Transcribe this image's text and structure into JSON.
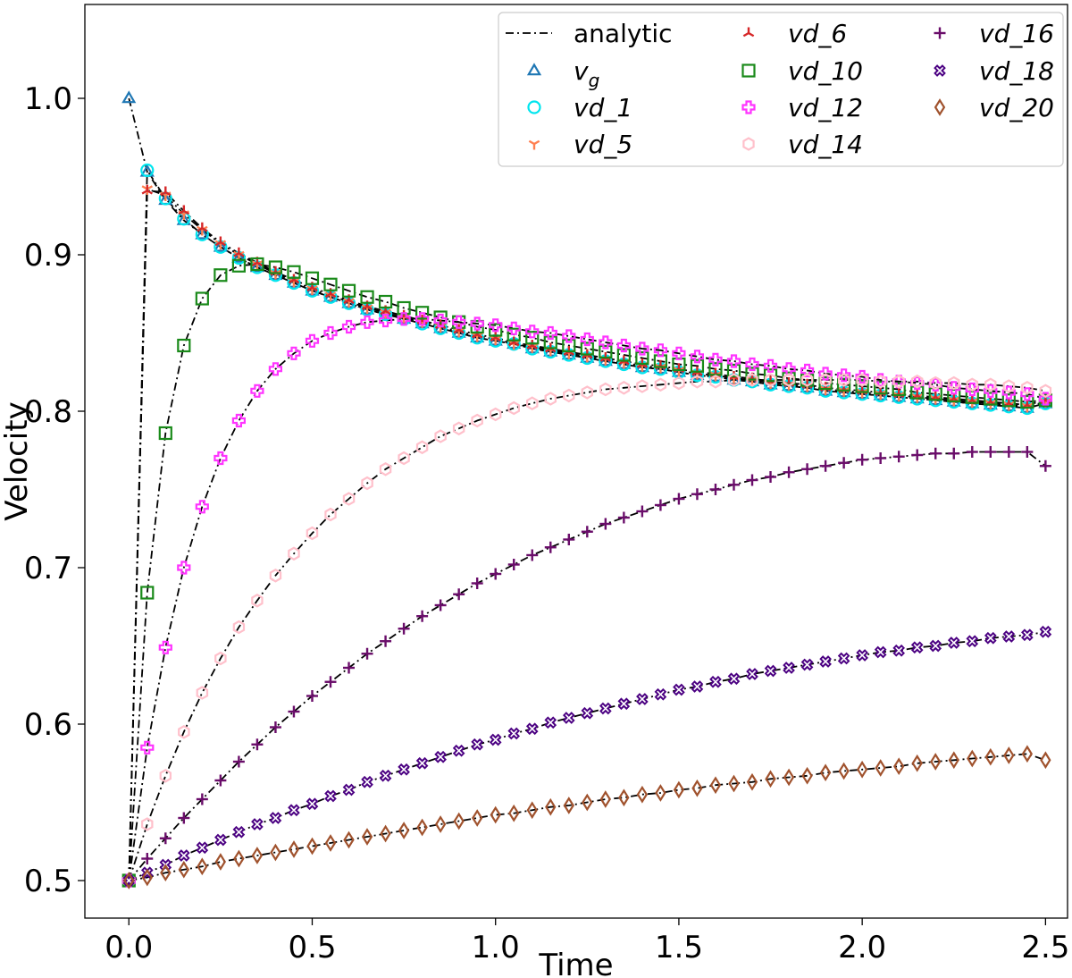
{
  "chart_data": {
    "type": "line",
    "title": "",
    "xlabel": "Time",
    "ylabel": "Velocity",
    "xlim": [
      -0.12,
      2.56
    ],
    "ylim": [
      0.476,
      1.06
    ],
    "xticks": [
      0.0,
      0.5,
      1.0,
      1.5,
      2.0,
      2.5
    ],
    "xtick_labels": [
      "0.0",
      "0.5",
      "1.0",
      "1.5",
      "2.0",
      "2.5"
    ],
    "yticks": [
      0.5,
      0.6,
      0.7,
      0.8,
      0.9,
      1.0
    ],
    "ytick_labels": [
      "0.5",
      "0.6",
      "0.7",
      "0.8",
      "0.9",
      "1.0"
    ],
    "grid": false,
    "legend_position": "top-right",
    "legend_columns": 3,
    "time_step": 0.05,
    "t_end": 2.5,
    "legend": [
      {
        "key": "analytic",
        "label": "analytic",
        "sub": "",
        "italic": false
      },
      {
        "key": "vg",
        "label": "v",
        "sub": "g",
        "italic": true
      },
      {
        "key": "vd_1",
        "label": "vd_1",
        "sub": "",
        "italic": true
      },
      {
        "key": "vd_5",
        "label": "vd_5",
        "sub": "",
        "italic": true
      },
      {
        "key": "vd_6",
        "label": "vd_6",
        "sub": "",
        "italic": true
      },
      {
        "key": "vd_10",
        "label": "vd_10",
        "sub": "",
        "italic": true
      },
      {
        "key": "vd_12",
        "label": "vd_12",
        "sub": "",
        "italic": true
      },
      {
        "key": "vd_14",
        "label": "vd_14",
        "sub": "",
        "italic": true
      },
      {
        "key": "vd_16",
        "label": "vd_16",
        "sub": "",
        "italic": true
      },
      {
        "key": "vd_18",
        "label": "vd_18",
        "sub": "",
        "italic": true
      },
      {
        "key": "vd_20",
        "label": "vd_20",
        "sub": "",
        "italic": true
      }
    ],
    "series": [
      {
        "name": "vg",
        "marker": "triangle",
        "color": "#1f77b4",
        "t": [
          0,
          0.05,
          0.1,
          0.15,
          0.2,
          0.25,
          0.3,
          0.35,
          0.4,
          0.45,
          0.5,
          0.55,
          0.6,
          0.65,
          0.7,
          0.75,
          0.8,
          0.85,
          0.9,
          0.95,
          1.0,
          1.05,
          1.1,
          1.15,
          1.2,
          1.25,
          1.3,
          1.35,
          1.4,
          1.45,
          1.5,
          1.55,
          1.6,
          1.65,
          1.7,
          1.75,
          1.8,
          1.85,
          1.9,
          1.95,
          2.0,
          2.05,
          2.1,
          2.15,
          2.2,
          2.25,
          2.3,
          2.35,
          2.4,
          2.45,
          2.5
        ],
        "values": [
          1.0,
          0.953,
          0.935,
          0.922,
          0.913,
          0.905,
          0.898,
          0.892,
          0.887,
          0.882,
          0.877,
          0.873,
          0.869,
          0.865,
          0.862,
          0.859,
          0.856,
          0.853,
          0.85,
          0.847,
          0.845,
          0.843,
          0.84,
          0.838,
          0.836,
          0.834,
          0.832,
          0.83,
          0.828,
          0.827,
          0.825,
          0.823,
          0.822,
          0.82,
          0.819,
          0.817,
          0.816,
          0.815,
          0.813,
          0.812,
          0.811,
          0.81,
          0.809,
          0.808,
          0.807,
          0.806,
          0.805,
          0.804,
          0.803,
          0.802,
          0.805
        ]
      },
      {
        "name": "vd_1",
        "marker": "circle",
        "color": "#00e5ee",
        "t": [
          0,
          0.05,
          0.1,
          0.15,
          0.2,
          0.25,
          0.3,
          0.35,
          0.4,
          0.45,
          0.5,
          0.55,
          0.6,
          0.65,
          0.7,
          0.75,
          0.8,
          0.85,
          0.9,
          0.95,
          1.0,
          1.05,
          1.1,
          1.15,
          1.2,
          1.25,
          1.3,
          1.35,
          1.4,
          1.45,
          1.5,
          1.55,
          1.6,
          1.65,
          1.7,
          1.75,
          1.8,
          1.85,
          1.9,
          1.95,
          2.0,
          2.05,
          2.1,
          2.15,
          2.2,
          2.25,
          2.3,
          2.35,
          2.4,
          2.45,
          2.5
        ],
        "values": [
          0.5,
          0.954,
          0.936,
          0.923,
          0.913,
          0.905,
          0.898,
          0.892,
          0.887,
          0.882,
          0.877,
          0.873,
          0.869,
          0.865,
          0.862,
          0.859,
          0.856,
          0.853,
          0.85,
          0.847,
          0.845,
          0.843,
          0.84,
          0.838,
          0.836,
          0.834,
          0.832,
          0.83,
          0.828,
          0.827,
          0.825,
          0.823,
          0.822,
          0.82,
          0.819,
          0.817,
          0.816,
          0.815,
          0.813,
          0.812,
          0.811,
          0.81,
          0.809,
          0.808,
          0.807,
          0.806,
          0.805,
          0.804,
          0.803,
          0.802,
          0.805
        ]
      },
      {
        "name": "vd_5",
        "marker": "tri_down",
        "color": "#ff7f50",
        "t": [
          0,
          0.05,
          0.1,
          0.15,
          0.2,
          0.25,
          0.3,
          0.35,
          0.4,
          0.45,
          0.5,
          0.55,
          0.6,
          0.65,
          0.7,
          0.75,
          0.8,
          0.85,
          0.9,
          0.95,
          1.0,
          1.05,
          1.1,
          1.15,
          1.2,
          1.25,
          1.3,
          1.35,
          1.4,
          1.45,
          1.5,
          1.55,
          1.6,
          1.65,
          1.7,
          1.75,
          1.8,
          1.85,
          1.9,
          1.95,
          2.0,
          2.05,
          2.1,
          2.15,
          2.2,
          2.25,
          2.3,
          2.35,
          2.4,
          2.45,
          2.5
        ],
        "values": [
          0.5,
          0.942,
          0.938,
          0.926,
          0.916,
          0.907,
          0.9,
          0.894,
          0.888,
          0.883,
          0.878,
          0.874,
          0.87,
          0.866,
          0.863,
          0.86,
          0.857,
          0.854,
          0.851,
          0.848,
          0.846,
          0.843,
          0.841,
          0.839,
          0.837,
          0.835,
          0.833,
          0.831,
          0.829,
          0.828,
          0.826,
          0.824,
          0.823,
          0.821,
          0.82,
          0.818,
          0.817,
          0.816,
          0.814,
          0.813,
          0.812,
          0.811,
          0.81,
          0.809,
          0.808,
          0.807,
          0.806,
          0.805,
          0.804,
          0.803,
          0.806
        ]
      },
      {
        "name": "vd_6",
        "marker": "tri_up",
        "color": "#d62728",
        "t": [
          0,
          0.05,
          0.1,
          0.15,
          0.2,
          0.25,
          0.3,
          0.35,
          0.4,
          0.45,
          0.5,
          0.55,
          0.6,
          0.65,
          0.7,
          0.75,
          0.8,
          0.85,
          0.9,
          0.95,
          1.0,
          1.05,
          1.1,
          1.15,
          1.2,
          1.25,
          1.3,
          1.35,
          1.4,
          1.45,
          1.5,
          1.55,
          1.6,
          1.65,
          1.7,
          1.75,
          1.8,
          1.85,
          1.9,
          1.95,
          2.0,
          2.05,
          2.1,
          2.15,
          2.2,
          2.25,
          2.3,
          2.35,
          2.4,
          2.45,
          2.5
        ],
        "values": [
          0.5,
          0.941,
          0.94,
          0.928,
          0.917,
          0.908,
          0.901,
          0.895,
          0.889,
          0.884,
          0.879,
          0.875,
          0.871,
          0.867,
          0.864,
          0.861,
          0.858,
          0.855,
          0.852,
          0.849,
          0.847,
          0.844,
          0.842,
          0.84,
          0.838,
          0.836,
          0.834,
          0.832,
          0.83,
          0.829,
          0.827,
          0.825,
          0.824,
          0.822,
          0.821,
          0.819,
          0.818,
          0.817,
          0.815,
          0.814,
          0.813,
          0.812,
          0.811,
          0.81,
          0.809,
          0.808,
          0.807,
          0.806,
          0.805,
          0.804,
          0.807
        ]
      },
      {
        "name": "vd_10",
        "marker": "square",
        "color": "#1a8a1a",
        "t": [
          0,
          0.05,
          0.1,
          0.15,
          0.2,
          0.25,
          0.3,
          0.35,
          0.4,
          0.45,
          0.5,
          0.55,
          0.6,
          0.65,
          0.7,
          0.75,
          0.8,
          0.85,
          0.9,
          0.95,
          1.0,
          1.05,
          1.1,
          1.15,
          1.2,
          1.25,
          1.3,
          1.35,
          1.4,
          1.45,
          1.5,
          1.55,
          1.6,
          1.65,
          1.7,
          1.75,
          1.8,
          1.85,
          1.9,
          1.95,
          2.0,
          2.05,
          2.1,
          2.15,
          2.2,
          2.25,
          2.3,
          2.35,
          2.4,
          2.45,
          2.5
        ],
        "values": [
          0.5,
          0.684,
          0.786,
          0.842,
          0.872,
          0.887,
          0.893,
          0.894,
          0.892,
          0.889,
          0.885,
          0.881,
          0.877,
          0.873,
          0.87,
          0.866,
          0.863,
          0.86,
          0.857,
          0.854,
          0.852,
          0.849,
          0.847,
          0.844,
          0.842,
          0.84,
          0.838,
          0.836,
          0.834,
          0.832,
          0.83,
          0.829,
          0.827,
          0.826,
          0.824,
          0.823,
          0.821,
          0.82,
          0.818,
          0.817,
          0.816,
          0.815,
          0.814,
          0.812,
          0.811,
          0.81,
          0.809,
          0.808,
          0.807,
          0.806,
          0.807
        ]
      },
      {
        "name": "vd_12",
        "marker": "plus_filled",
        "color": "#ff33ff",
        "t": [
          0,
          0.05,
          0.1,
          0.15,
          0.2,
          0.25,
          0.3,
          0.35,
          0.4,
          0.45,
          0.5,
          0.55,
          0.6,
          0.65,
          0.7,
          0.75,
          0.8,
          0.85,
          0.9,
          0.95,
          1.0,
          1.05,
          1.1,
          1.15,
          1.2,
          1.25,
          1.3,
          1.35,
          1.4,
          1.45,
          1.5,
          1.55,
          1.6,
          1.65,
          1.7,
          1.75,
          1.8,
          1.85,
          1.9,
          1.95,
          2.0,
          2.05,
          2.1,
          2.15,
          2.2,
          2.25,
          2.3,
          2.35,
          2.4,
          2.45,
          2.5
        ],
        "values": [
          0.5,
          0.585,
          0.649,
          0.7,
          0.739,
          0.77,
          0.794,
          0.813,
          0.827,
          0.837,
          0.845,
          0.85,
          0.854,
          0.857,
          0.858,
          0.859,
          0.859,
          0.858,
          0.857,
          0.856,
          0.855,
          0.853,
          0.851,
          0.85,
          0.848,
          0.846,
          0.844,
          0.842,
          0.84,
          0.839,
          0.837,
          0.835,
          0.833,
          0.832,
          0.83,
          0.829,
          0.827,
          0.826,
          0.824,
          0.823,
          0.822,
          0.82,
          0.819,
          0.818,
          0.817,
          0.815,
          0.814,
          0.813,
          0.812,
          0.811,
          0.808
        ]
      },
      {
        "name": "vd_14",
        "marker": "hexagon",
        "color": "#ffc0cb",
        "t": [
          0,
          0.05,
          0.1,
          0.15,
          0.2,
          0.25,
          0.3,
          0.35,
          0.4,
          0.45,
          0.5,
          0.55,
          0.6,
          0.65,
          0.7,
          0.75,
          0.8,
          0.85,
          0.9,
          0.95,
          1.0,
          1.05,
          1.1,
          1.15,
          1.2,
          1.25,
          1.3,
          1.35,
          1.4,
          1.45,
          1.5,
          1.55,
          1.6,
          1.65,
          1.7,
          1.75,
          1.8,
          1.85,
          1.9,
          1.95,
          2.0,
          2.05,
          2.1,
          2.15,
          2.2,
          2.25,
          2.3,
          2.35,
          2.4,
          2.45,
          2.5
        ],
        "values": [
          0.5,
          0.536,
          0.567,
          0.595,
          0.62,
          0.642,
          0.662,
          0.679,
          0.695,
          0.709,
          0.722,
          0.734,
          0.744,
          0.754,
          0.763,
          0.77,
          0.777,
          0.784,
          0.789,
          0.794,
          0.798,
          0.802,
          0.805,
          0.808,
          0.81,
          0.812,
          0.814,
          0.815,
          0.816,
          0.817,
          0.818,
          0.819,
          0.819,
          0.82,
          0.82,
          0.82,
          0.82,
          0.82,
          0.82,
          0.82,
          0.82,
          0.819,
          0.819,
          0.819,
          0.818,
          0.818,
          0.817,
          0.817,
          0.816,
          0.815,
          0.813
        ]
      },
      {
        "name": "vd_16",
        "marker": "plus",
        "color": "#6a0d6a",
        "t": [
          0,
          0.05,
          0.1,
          0.15,
          0.2,
          0.25,
          0.3,
          0.35,
          0.4,
          0.45,
          0.5,
          0.55,
          0.6,
          0.65,
          0.7,
          0.75,
          0.8,
          0.85,
          0.9,
          0.95,
          1.0,
          1.05,
          1.1,
          1.15,
          1.2,
          1.25,
          1.3,
          1.35,
          1.4,
          1.45,
          1.5,
          1.55,
          1.6,
          1.65,
          1.7,
          1.75,
          1.8,
          1.85,
          1.9,
          1.95,
          2.0,
          2.05,
          2.1,
          2.15,
          2.2,
          2.25,
          2.3,
          2.35,
          2.4,
          2.45,
          2.5
        ],
        "values": [
          0.5,
          0.514,
          0.527,
          0.54,
          0.552,
          0.564,
          0.576,
          0.587,
          0.598,
          0.608,
          0.618,
          0.627,
          0.636,
          0.645,
          0.653,
          0.661,
          0.669,
          0.676,
          0.683,
          0.69,
          0.696,
          0.702,
          0.708,
          0.713,
          0.718,
          0.723,
          0.728,
          0.732,
          0.736,
          0.74,
          0.744,
          0.747,
          0.75,
          0.753,
          0.756,
          0.758,
          0.761,
          0.763,
          0.765,
          0.767,
          0.769,
          0.77,
          0.771,
          0.772,
          0.773,
          0.773,
          0.774,
          0.774,
          0.774,
          0.774,
          0.765
        ]
      },
      {
        "name": "vd_18",
        "marker": "x_filled",
        "color": "#4b0082",
        "t": [
          0,
          0.05,
          0.1,
          0.15,
          0.2,
          0.25,
          0.3,
          0.35,
          0.4,
          0.45,
          0.5,
          0.55,
          0.6,
          0.65,
          0.7,
          0.75,
          0.8,
          0.85,
          0.9,
          0.95,
          1.0,
          1.05,
          1.1,
          1.15,
          1.2,
          1.25,
          1.3,
          1.35,
          1.4,
          1.45,
          1.5,
          1.55,
          1.6,
          1.65,
          1.7,
          1.75,
          1.8,
          1.85,
          1.9,
          1.95,
          2.0,
          2.05,
          2.1,
          2.15,
          2.2,
          2.25,
          2.3,
          2.35,
          2.4,
          2.45,
          2.5
        ],
        "values": [
          0.5,
          0.505,
          0.51,
          0.516,
          0.521,
          0.526,
          0.531,
          0.536,
          0.54,
          0.545,
          0.549,
          0.554,
          0.558,
          0.563,
          0.567,
          0.571,
          0.575,
          0.579,
          0.583,
          0.587,
          0.59,
          0.594,
          0.597,
          0.601,
          0.604,
          0.607,
          0.61,
          0.613,
          0.616,
          0.619,
          0.622,
          0.624,
          0.627,
          0.629,
          0.632,
          0.634,
          0.636,
          0.638,
          0.64,
          0.642,
          0.644,
          0.646,
          0.647,
          0.649,
          0.65,
          0.652,
          0.653,
          0.655,
          0.656,
          0.657,
          0.659
        ]
      },
      {
        "name": "vd_20",
        "marker": "diamond",
        "color": "#a0522d",
        "t": [
          0,
          0.05,
          0.1,
          0.15,
          0.2,
          0.25,
          0.3,
          0.35,
          0.4,
          0.45,
          0.5,
          0.55,
          0.6,
          0.65,
          0.7,
          0.75,
          0.8,
          0.85,
          0.9,
          0.95,
          1.0,
          1.05,
          1.1,
          1.15,
          1.2,
          1.25,
          1.3,
          1.35,
          1.4,
          1.45,
          1.5,
          1.55,
          1.6,
          1.65,
          1.7,
          1.75,
          1.8,
          1.85,
          1.9,
          1.95,
          2.0,
          2.05,
          2.1,
          2.15,
          2.2,
          2.25,
          2.3,
          2.35,
          2.4,
          2.45,
          2.5
        ],
        "values": [
          0.5,
          0.502,
          0.505,
          0.507,
          0.509,
          0.512,
          0.514,
          0.516,
          0.518,
          0.52,
          0.522,
          0.524,
          0.526,
          0.528,
          0.53,
          0.532,
          0.534,
          0.536,
          0.538,
          0.54,
          0.542,
          0.543,
          0.545,
          0.547,
          0.548,
          0.55,
          0.552,
          0.553,
          0.555,
          0.556,
          0.558,
          0.559,
          0.561,
          0.562,
          0.563,
          0.565,
          0.566,
          0.567,
          0.569,
          0.57,
          0.571,
          0.572,
          0.573,
          0.575,
          0.576,
          0.577,
          0.578,
          0.579,
          0.58,
          0.581,
          0.577
        ]
      }
    ]
  }
}
